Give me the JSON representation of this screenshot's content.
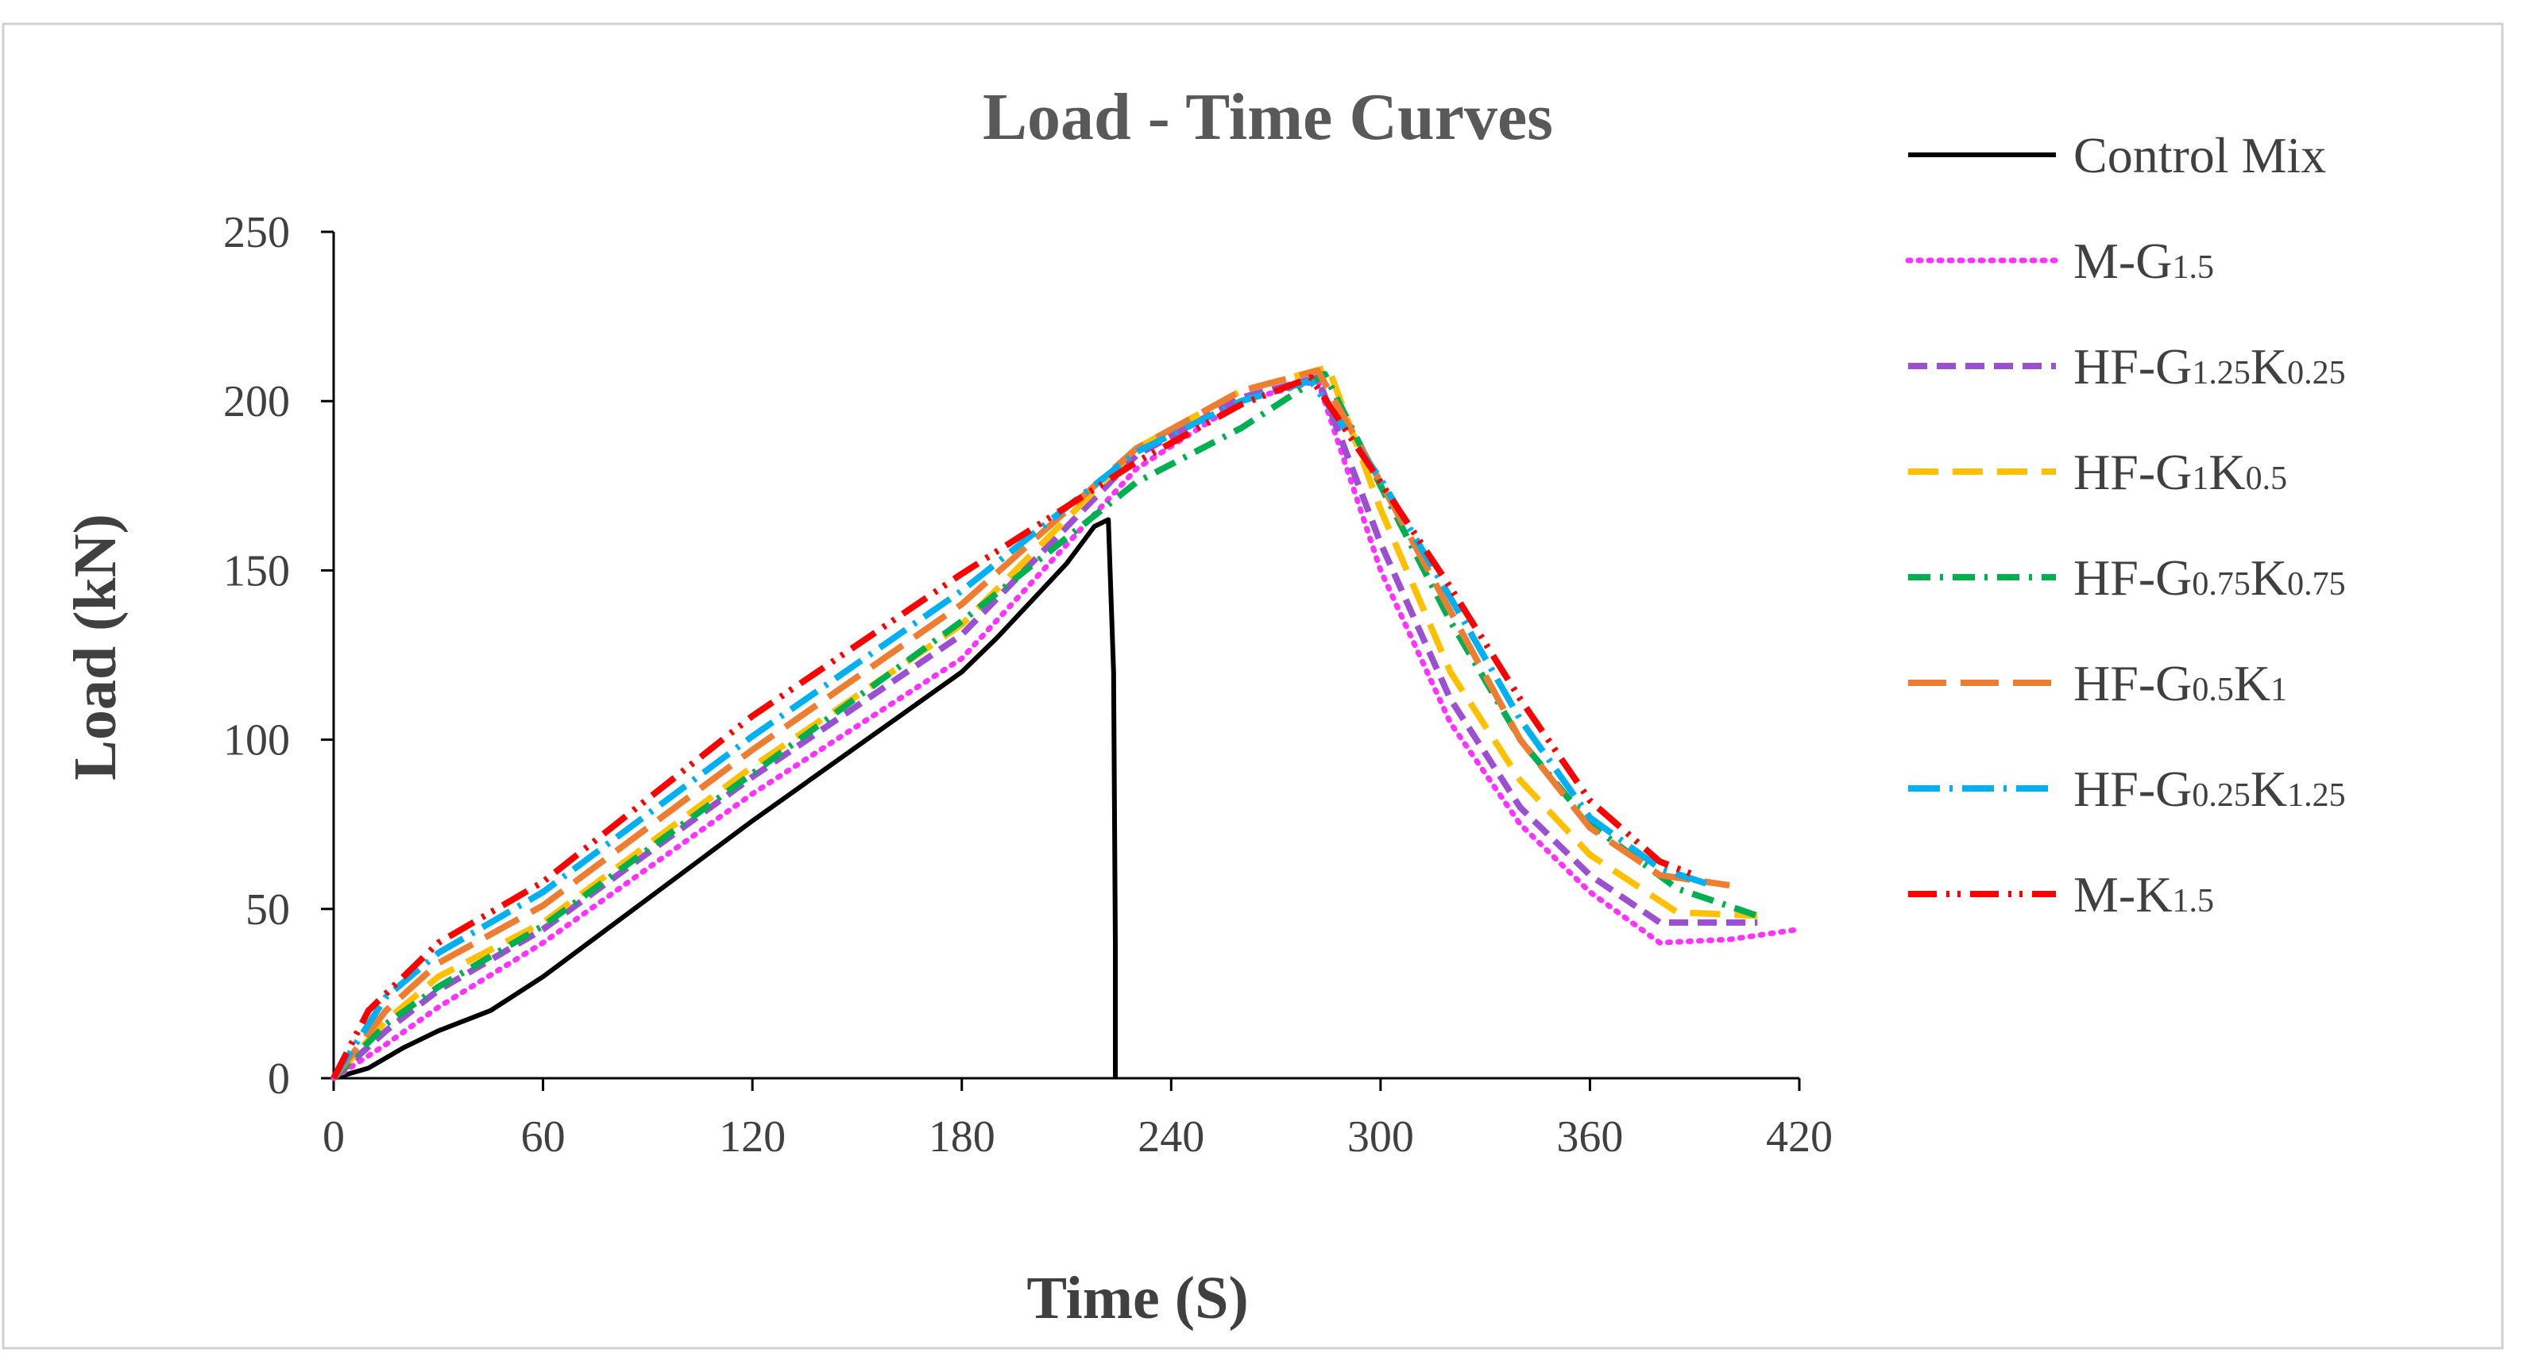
{
  "chart_data": {
    "type": "line",
    "title": "Load - Time Curves",
    "xlabel": "Time (S)",
    "ylabel": "Load (kN)",
    "xlim": [
      0,
      420
    ],
    "ylim": [
      0,
      250
    ],
    "xticks": [
      0,
      60,
      120,
      180,
      240,
      300,
      360,
      420
    ],
    "yticks": [
      0,
      50,
      100,
      150,
      200,
      250
    ],
    "legend_position": "right",
    "series": [
      {
        "name": "Control Mix",
        "label_parts": [
          {
            "t": "Control Mix",
            "sub": false
          }
        ],
        "color": "#000000",
        "dash": "solid",
        "x": [
          0,
          10,
          20,
          30,
          45,
          60,
          90,
          120,
          150,
          180,
          190,
          200,
          210,
          218,
          222,
          223.5,
          224,
          224
        ],
        "y": [
          0,
          3,
          9,
          14,
          20,
          30,
          53,
          76,
          98,
          120,
          130,
          141,
          152,
          163,
          165,
          120,
          40,
          0
        ]
      },
      {
        "name": "M-G1.5",
        "label_parts": [
          {
            "t": "M-G",
            "sub": false
          },
          {
            "t": "1.5",
            "sub": true
          }
        ],
        "color": "#ff33ff",
        "dash": "dot",
        "x": [
          0,
          15,
          30,
          60,
          120,
          180,
          230,
          260,
          282,
          300,
          320,
          340,
          360,
          380,
          400,
          420
        ],
        "y": [
          0,
          10,
          21,
          40,
          84,
          124,
          180,
          200,
          206,
          150,
          105,
          75,
          55,
          40,
          41,
          44
        ]
      },
      {
        "name": "HF-G1.25K0.25",
        "label_parts": [
          {
            "t": "HF-G",
            "sub": false
          },
          {
            "t": "1.25",
            "sub": true
          },
          {
            "t": "K",
            "sub": false
          },
          {
            "t": "0.25",
            "sub": true
          }
        ],
        "color": "#9b4fd1",
        "dash": "dash",
        "x": [
          0,
          15,
          30,
          60,
          120,
          180,
          230,
          260,
          282,
          300,
          320,
          340,
          360,
          380,
          408
        ],
        "y": [
          0,
          14,
          26,
          44,
          89,
          131,
          184,
          201,
          207,
          158,
          112,
          80,
          60,
          46,
          46
        ]
      },
      {
        "name": "HF-G1K0.5",
        "label_parts": [
          {
            "t": "HF-G",
            "sub": false
          },
          {
            "t": "1",
            "sub": true
          },
          {
            "t": "K",
            "sub": false
          },
          {
            "t": "0.5",
            "sub": true
          }
        ],
        "color": "#ffc000",
        "dash": "longdash",
        "x": [
          0,
          15,
          30,
          60,
          120,
          180,
          230,
          260,
          285,
          300,
          320,
          340,
          360,
          385,
          408
        ],
        "y": [
          0,
          17,
          30,
          46,
          92,
          134,
          186,
          203,
          210,
          168,
          120,
          88,
          66,
          49,
          48
        ]
      },
      {
        "name": "HF-G0.75K0.75",
        "label_parts": [
          {
            "t": "HF-G",
            "sub": false
          },
          {
            "t": "0.75",
            "sub": true
          },
          {
            "t": "K",
            "sub": false
          },
          {
            "t": "0.75",
            "sub": true
          }
        ],
        "color": "#00b050",
        "dash": "dashdot",
        "x": [
          0,
          15,
          30,
          60,
          120,
          180,
          230,
          260,
          284,
          300,
          320,
          340,
          360,
          385,
          408
        ],
        "y": [
          0,
          16,
          27,
          45,
          90,
          135,
          176,
          192,
          208,
          175,
          135,
          100,
          75,
          56,
          48
        ]
      },
      {
        "name": "HF-G0.5K1",
        "label_parts": [
          {
            "t": "HF-G",
            "sub": false
          },
          {
            "t": "0.5",
            "sub": true
          },
          {
            "t": "K",
            "sub": false
          },
          {
            "t": "1",
            "sub": true
          }
        ],
        "color": "#ed7d31",
        "dash": "longdash2",
        "x": [
          0,
          15,
          30,
          60,
          120,
          180,
          230,
          260,
          282,
          300,
          320,
          340,
          360,
          380,
          400
        ],
        "y": [
          0,
          20,
          34,
          51,
          97,
          140,
          186,
          203,
          209,
          176,
          138,
          100,
          74,
          60,
          57
        ]
      },
      {
        "name": "HF-G0.25K1.25",
        "label_parts": [
          {
            "t": "HF-G",
            "sub": false
          },
          {
            "t": "0.25",
            "sub": true
          },
          {
            "t": "K",
            "sub": false
          },
          {
            "t": "1.25",
            "sub": true
          }
        ],
        "color": "#00b0f0",
        "dash": "longdashdot",
        "x": [
          0,
          15,
          30,
          60,
          120,
          180,
          230,
          260,
          280,
          300,
          320,
          340,
          360,
          380,
          395
        ],
        "y": [
          0,
          24,
          37,
          55,
          101,
          144,
          185,
          200,
          206,
          177,
          142,
          106,
          77,
          62,
          57
        ]
      },
      {
        "name": "M-K1.5",
        "label_parts": [
          {
            "t": "M-K",
            "sub": false
          },
          {
            "t": "1.5",
            "sub": true
          }
        ],
        "color": "#ff0000",
        "dash": "longdashdotdot",
        "x": [
          0,
          10,
          30,
          60,
          120,
          180,
          230,
          260,
          280,
          300,
          320,
          340,
          360,
          380,
          390
        ],
        "y": [
          0,
          20,
          40,
          58,
          107,
          149,
          182,
          199,
          207,
          176,
          145,
          112,
          82,
          64,
          60
        ]
      }
    ]
  }
}
